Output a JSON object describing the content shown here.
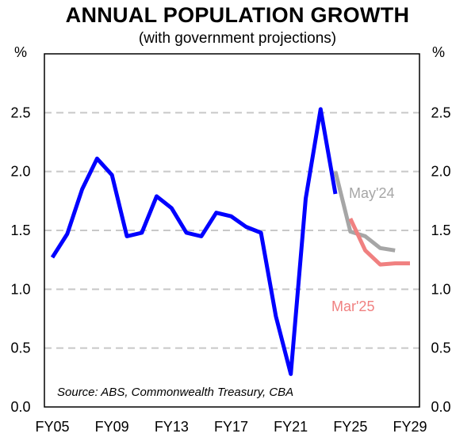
{
  "chart_data": {
    "type": "line",
    "title": "ANNUAL POPULATION GROWTH",
    "subtitle": "(with government projections)",
    "ylabel_left": "%",
    "ylabel_right": "%",
    "ylim": [
      0,
      3.0
    ],
    "yticks": [
      "0.0",
      "0.5",
      "1.0",
      "1.5",
      "2.0",
      "2.5"
    ],
    "xlim": [
      2005,
      2029
    ],
    "xticks": [
      {
        "year": 2005,
        "label": "FY05"
      },
      {
        "year": 2009,
        "label": "FY09"
      },
      {
        "year": 2013,
        "label": "FY13"
      },
      {
        "year": 2017,
        "label": "FY17"
      },
      {
        "year": 2021,
        "label": "FY21"
      },
      {
        "year": 2025,
        "label": "FY25"
      },
      {
        "year": 2029,
        "label": "FY29"
      }
    ],
    "grid": true,
    "source": "Source: ABS, Commonwealth Treasury, CBA",
    "series": [
      {
        "name": "",
        "color": "#0000ff",
        "x": [
          2005,
          2006,
          2007,
          2008,
          2009,
          2010,
          2011,
          2012,
          2013,
          2014,
          2015,
          2016,
          2017,
          2018,
          2019,
          2020,
          2021,
          2022,
          2023,
          2024
        ],
        "y": [
          1.27,
          1.47,
          1.85,
          2.11,
          1.97,
          1.45,
          1.48,
          1.79,
          1.69,
          1.48,
          1.45,
          1.65,
          1.62,
          1.53,
          1.48,
          0.77,
          0.28,
          1.77,
          2.53,
          1.81
        ]
      },
      {
        "name": "May'24",
        "color": "#a6a6a6",
        "x": [
          2024,
          2025,
          2026,
          2027,
          2028
        ],
        "y": [
          2.0,
          1.49,
          1.45,
          1.35,
          1.33
        ]
      },
      {
        "name": "Mar'25",
        "color": "#f08080",
        "x": [
          2025,
          2026,
          2027,
          2028,
          2029
        ],
        "y": [
          1.6,
          1.33,
          1.21,
          1.22,
          1.22
        ]
      }
    ]
  }
}
